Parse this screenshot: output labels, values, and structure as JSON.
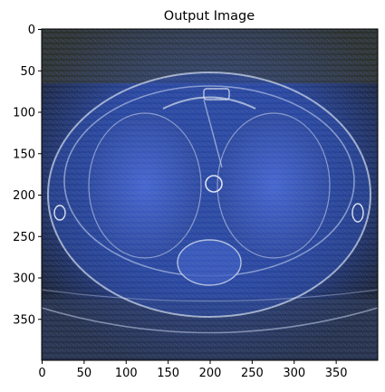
{
  "figure": {
    "title": "Output Image"
  },
  "image": {
    "description_icon": "texture-image",
    "palette": {
      "base_dark": "#1c2436",
      "blue": "#3a5ec8",
      "bright_blue": "#6d8df0",
      "olive": "#5c5a2e",
      "highlight": "#d8e2f0"
    }
  },
  "axes": {
    "x": {
      "ticks": [
        0,
        50,
        100,
        150,
        200,
        250,
        300,
        350
      ],
      "range": [
        0,
        400
      ]
    },
    "y": {
      "ticks": [
        0,
        50,
        100,
        150,
        200,
        250,
        300,
        350
      ],
      "range": [
        0,
        400
      ],
      "inverted": true
    }
  }
}
